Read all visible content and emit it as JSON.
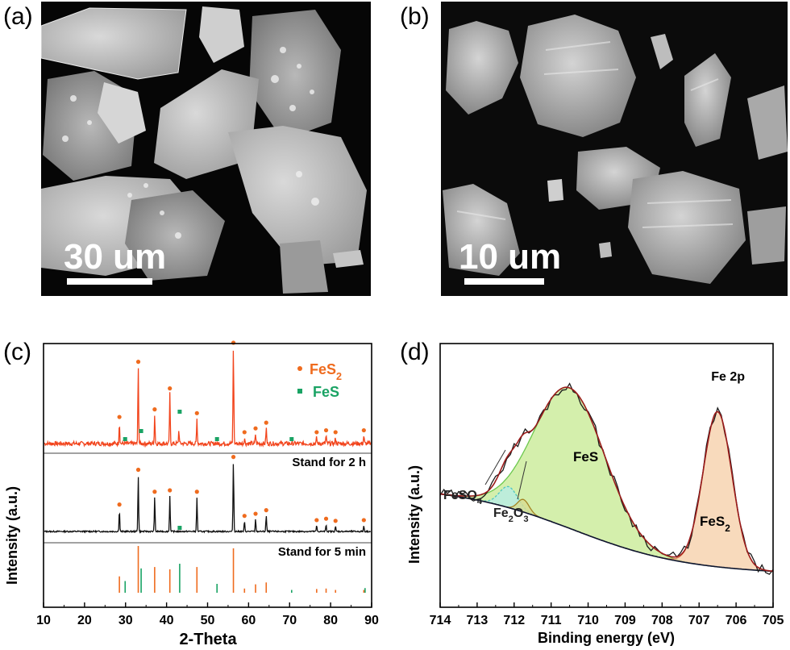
{
  "panels": {
    "a": {
      "label": "(a)",
      "scale_text": "30 um"
    },
    "b": {
      "label": "(b)",
      "scale_text": "10 um"
    },
    "c": {
      "label": "(c)"
    },
    "d": {
      "label": "(d)"
    }
  },
  "chart_data": [
    {
      "type": "line",
      "panel": "(c)",
      "xlabel": "2-Theta",
      "ylabel": "Intensity (a.u.)",
      "xlim": [
        10,
        90
      ],
      "xticks": [
        10,
        20,
        30,
        40,
        50,
        60,
        70,
        80,
        90
      ],
      "legend": [
        {
          "symbol": "circle",
          "label": "FeS",
          "subscript": "2",
          "color": "#ef6b1e"
        },
        {
          "symbol": "square",
          "label": "FeS",
          "subscript": "",
          "color": "#1aa364"
        }
      ],
      "legend_position": "top-right",
      "colors": {
        "top": "#f2441c",
        "middle": "#111111",
        "fes2": "#ef6b1e",
        "fes": "#1aa364"
      },
      "series": [
        {
          "name": "Stand for 2 h",
          "color": "#f2441c",
          "peaks": [
            [
              28.5,
              0.22
            ],
            [
              33.1,
              0.8
            ],
            [
              37.1,
              0.3
            ],
            [
              40.8,
              0.52
            ],
            [
              43.0,
              0.14
            ],
            [
              47.4,
              0.26
            ],
            [
              56.3,
              1.0
            ],
            [
              59.0,
              0.06
            ],
            [
              61.7,
              0.1
            ],
            [
              64.3,
              0.16
            ],
            [
              76.6,
              0.06
            ],
            [
              78.9,
              0.08
            ],
            [
              81.2,
              0.06
            ],
            [
              88.1,
              0.08
            ]
          ],
          "markers_fes2": [
            28.5,
            33.1,
            37.1,
            40.8,
            47.4,
            56.3,
            59.0,
            61.7,
            64.3,
            76.6,
            78.9,
            81.2,
            88.1
          ],
          "markers_fes": [
            29.9,
            33.8,
            43.2,
            52.3,
            70.5
          ]
        },
        {
          "name": "Stand for 5 min",
          "color": "#111111",
          "peaks": [
            [
              28.5,
              0.3
            ],
            [
              33.1,
              0.79
            ],
            [
              37.1,
              0.48
            ],
            [
              40.8,
              0.5
            ],
            [
              47.4,
              0.48
            ],
            [
              56.3,
              0.97
            ],
            [
              59.0,
              0.14
            ],
            [
              61.7,
              0.17
            ],
            [
              64.3,
              0.22
            ],
            [
              76.6,
              0.08
            ],
            [
              78.9,
              0.1
            ],
            [
              81.2,
              0.07
            ],
            [
              88.1,
              0.08
            ]
          ],
          "markers_fes2": [
            28.5,
            33.1,
            37.1,
            40.8,
            47.4,
            56.3,
            59.0,
            61.7,
            64.3,
            76.6,
            78.9,
            81.2,
            88.1
          ],
          "markers_fes": [
            43.2
          ]
        }
      ],
      "reference_fes2": [
        [
          28.5,
          0.35
        ],
        [
          33.1,
          1.0
        ],
        [
          37.1,
          0.55
        ],
        [
          40.8,
          0.5
        ],
        [
          47.4,
          0.55
        ],
        [
          56.3,
          0.95
        ],
        [
          59.0,
          0.09
        ],
        [
          61.7,
          0.18
        ],
        [
          64.3,
          0.22
        ],
        [
          76.6,
          0.08
        ],
        [
          78.9,
          0.09
        ],
        [
          81.2,
          0.06
        ],
        [
          88.1,
          0.06
        ]
      ],
      "reference_fes": [
        [
          29.9,
          0.25
        ],
        [
          33.8,
          0.52
        ],
        [
          43.2,
          0.62
        ],
        [
          52.3,
          0.19
        ],
        [
          70.5,
          0.06
        ],
        [
          88.4,
          0.1
        ]
      ]
    },
    {
      "type": "area",
      "panel": "(d)",
      "title": "Fe 2p",
      "xlabel": "Binding energy (eV)",
      "ylabel": "Intensity (a.u.)",
      "xlim": [
        714,
        705
      ],
      "xticks": [
        714,
        713,
        712,
        711,
        710,
        709,
        708,
        707,
        706,
        705
      ],
      "colors": {
        "fit": "#9b1b1b",
        "raw": "#1a1a1a",
        "background": "#0d1530",
        "fes": "#ccec9e",
        "fes_line": "#6cc84e",
        "feso4": "#b7ece6",
        "feso4_line": "#4fc6c0",
        "fe2o3": "#d7dc91",
        "fe2o3_line": "#a48424",
        "fes2": "#f6d1ab",
        "fes2_line": "#de7a52"
      },
      "components": [
        {
          "label": "FeS",
          "subscript": "",
          "center": 710.5,
          "height": 0.67,
          "width": 1.35
        },
        {
          "label": "FeSO",
          "subscript": "4",
          "center": 712.15,
          "height": 0.1,
          "width": 0.35
        },
        {
          "label": "Fe",
          "subscript": "2",
          "tail": "O",
          "tail_sub": "3",
          "center": 711.75,
          "height": 0.06,
          "width": 0.22
        },
        {
          "label": "FeS",
          "subscript": "2",
          "center": 706.5,
          "height": 0.74,
          "width": 0.55
        }
      ]
    }
  ]
}
